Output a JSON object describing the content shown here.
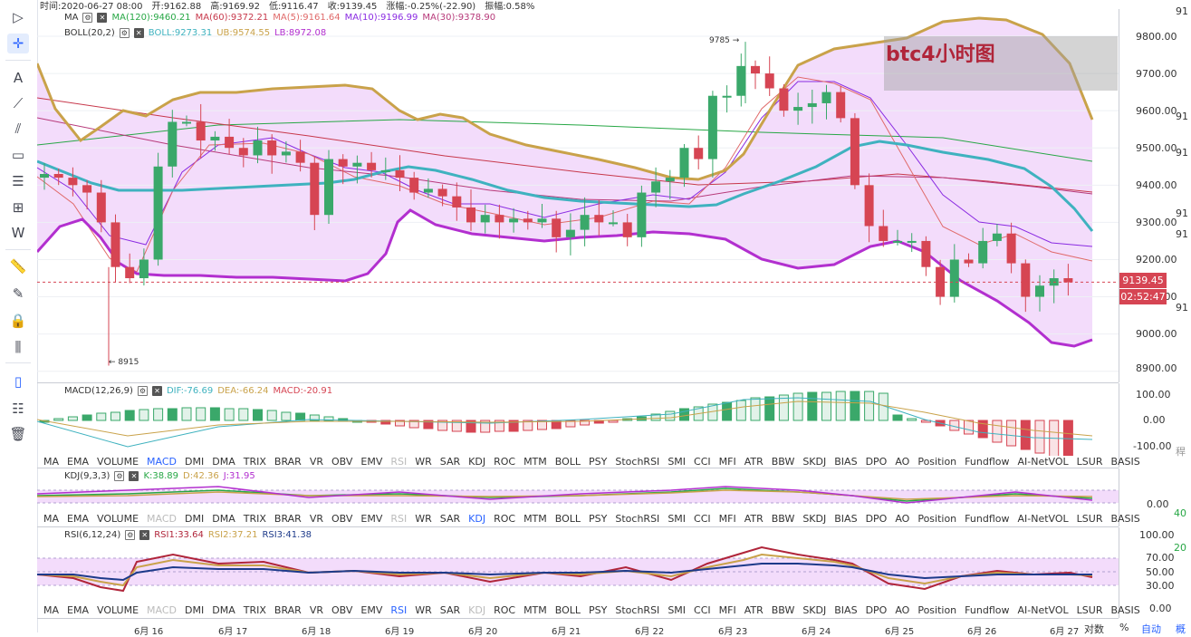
{
  "top_info": {
    "time": "时间:2020-06-27 08:00",
    "open": "开:9162.88",
    "high": "高:9169.92",
    "low": "低:9116.47",
    "close": "收:9139.45",
    "change": "涨幅:-0.25%(-22.90)",
    "amplitude": "振幅:0.58%"
  },
  "ma_legend": {
    "name": "MA",
    "ma120": "MA(120):9460.21",
    "ma60": "MA(60):9372.21",
    "ma5": "MA(5):9161.64",
    "ma10": "MA(10):9196.99",
    "ma30": "MA(30):9378.90"
  },
  "boll_legend": {
    "name": "BOLL(20,2)",
    "boll": "BOLL:9273.31",
    "ub": "UB:9574.55",
    "lb": "LB:8972.08"
  },
  "watermark": "btc4小时图",
  "annotations": {
    "high": "9785 →",
    "low": "← 8915"
  },
  "price_scale": [
    "9800.00",
    "9700.00",
    "9600.00",
    "9500.00",
    "9400.00",
    "9300.00",
    "9200.00",
    "9100.00",
    "9000.00",
    "8900.00"
  ],
  "last_price": "9139.45",
  "countdown": "02:52:47",
  "far_right": [
    "91",
    "91",
    "91",
    "91",
    "91",
    "91"
  ],
  "macd_legend": {
    "name": "MACD(12,26,9)",
    "dif": "DIF:-76.69",
    "dea": "DEA:-66.24",
    "macd": "MACD:-20.91"
  },
  "macd_scale": [
    "100.00",
    "0.00",
    "-100.00"
  ],
  "kdj_legend": {
    "name": "KDJ(9,3,3)",
    "k": "K:38.89",
    "d": "D:42.36",
    "j": "J:31.95"
  },
  "kdj_scale": [
    "0.00"
  ],
  "rsi_legend": {
    "name": "RSI(6,12,24)",
    "rsi1": "RSI1:33.64",
    "rsi2": "RSI2:37.21",
    "rsi3": "RSI3:41.38"
  },
  "rsi_scale": [
    "100.00",
    "70.00",
    "50.00",
    "30.00",
    "0.00"
  ],
  "far_right_lower": [
    "稈",
    "40",
    "20"
  ],
  "indicators": [
    "MA",
    "EMA",
    "VOLUME",
    "MACD",
    "DMI",
    "DMA",
    "TRIX",
    "BRAR",
    "VR",
    "OBV",
    "EMV",
    "RSI",
    "WR",
    "SAR",
    "KDJ",
    "ROC",
    "MTM",
    "BOLL",
    "PSY",
    "StochRSI",
    "SMI",
    "CCI",
    "MFI",
    "ATR",
    "BBW",
    "SKDJ",
    "BIAS",
    "DPO",
    "AO",
    "Position",
    "Fundflow",
    "AI-NetVOL",
    "LSUR",
    "BASIS"
  ],
  "date_labels": [
    "6月 16",
    "6月 17",
    "6月 18",
    "6月 19",
    "6月 20",
    "6月 21",
    "6月 22",
    "6月 23",
    "6月 24",
    "6月 25",
    "6月 26",
    "6月 27"
  ],
  "bottom_buttons": {
    "log": "对数",
    "percent": "%",
    "auto": "自动",
    "extra": "概"
  },
  "colors": {
    "up": "#3aa86a",
    "down": "#d64553",
    "boll_fill": "#f3dcfb",
    "ub": "#c9a24a",
    "lb": "#b22fcf",
    "mid": "#3fb2bf"
  }
}
